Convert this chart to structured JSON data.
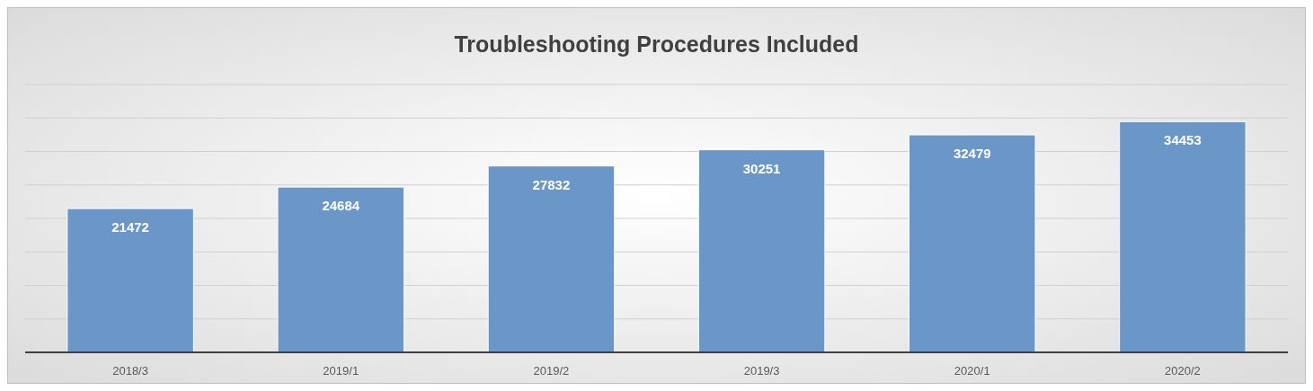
{
  "chart_data": {
    "type": "bar",
    "title": "Troubleshooting Procedures Included",
    "categories": [
      "2018/3",
      "2019/1",
      "2019/2",
      "2019/3",
      "2020/1",
      "2020/2"
    ],
    "values": [
      21472,
      24684,
      27832,
      30251,
      32479,
      34453
    ],
    "color": "#6a96c8",
    "data_labels": true,
    "ylim": [
      0,
      40000
    ],
    "yticks": [
      {
        "value": 0,
        "label": null
      },
      {
        "value": 5000,
        "label": null
      },
      {
        "value": 10000,
        "label": null
      },
      {
        "value": 15000,
        "label": null
      },
      {
        "value": 20000,
        "label": null
      },
      {
        "value": 25000,
        "label": null
      },
      {
        "value": 30000,
        "label": null
      },
      {
        "value": 35000,
        "label": null
      },
      {
        "value": 40000,
        "label": null
      }
    ],
    "tick_labels": "x",
    "grid": "y"
  }
}
